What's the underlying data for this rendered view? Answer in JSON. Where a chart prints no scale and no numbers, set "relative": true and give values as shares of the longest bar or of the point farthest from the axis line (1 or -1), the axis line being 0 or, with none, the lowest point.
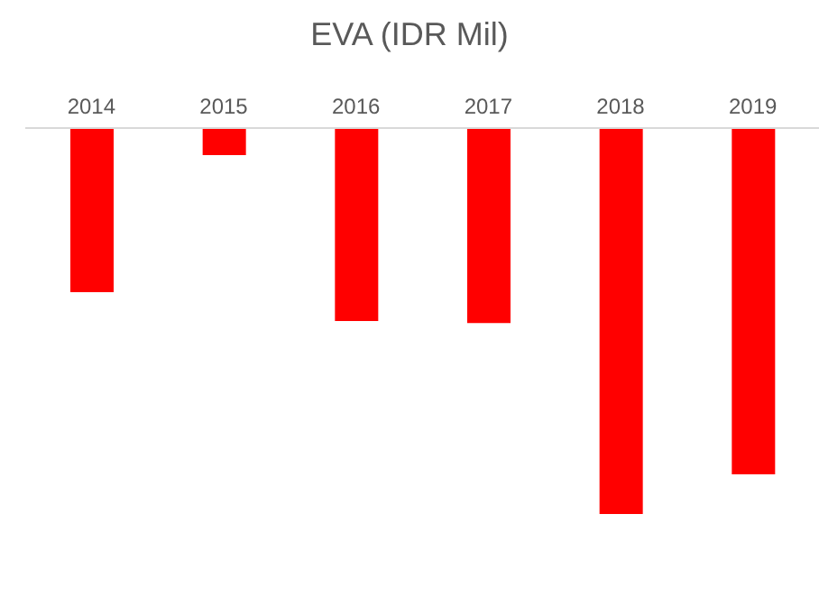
{
  "chart_data": {
    "type": "bar",
    "title": "EVA (IDR Mil)",
    "categories": [
      "2014",
      "2015",
      "2016",
      "2017",
      "2018",
      "2019"
    ],
    "values": [
      -0.425,
      -0.07,
      -0.5,
      -0.505,
      -1,
      -0.897
    ],
    "color": "#ff0000",
    "relative": true
  }
}
